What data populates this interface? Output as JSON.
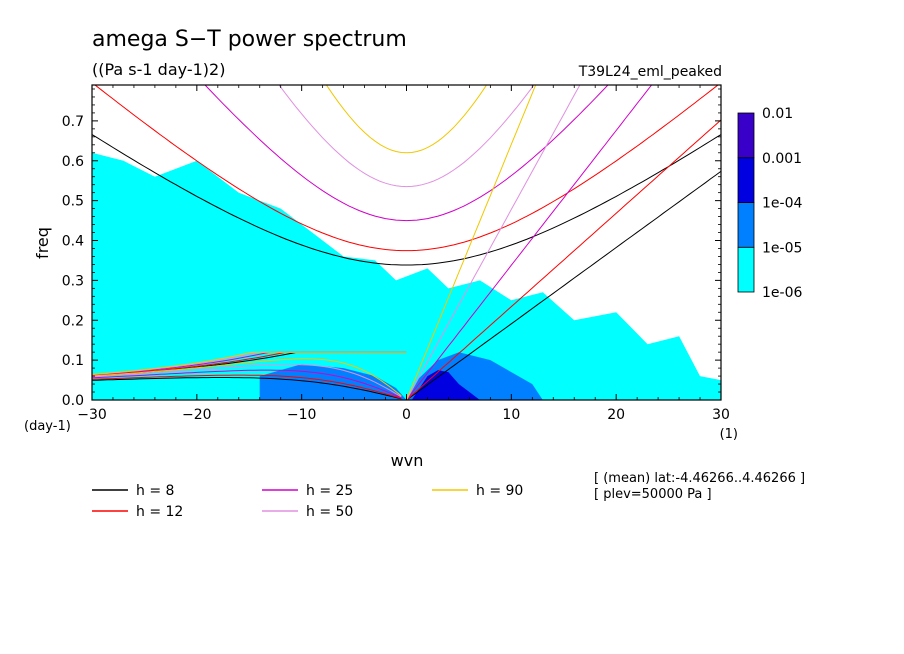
{
  "chart_data": {
    "type": "heatmap",
    "title": "amega S−T power spectrum",
    "subtitle": "((Pa s-1 day-1)2)",
    "run_label": "T39L24_eml_peaked",
    "xlabel": "wvn",
    "ylabel": "freq",
    "y_unit_label": "(day-1)",
    "x_unit_label": "(1)",
    "xlim": [
      -30,
      30
    ],
    "ylim": [
      0,
      0.79
    ],
    "xticks": [
      "−30",
      "−20",
      "−10",
      "0",
      "10",
      "20",
      "30"
    ],
    "yticks": [
      "0.0",
      "0.1",
      "0.2",
      "0.3",
      "0.4",
      "0.5",
      "0.6",
      "0.7"
    ],
    "colorbar": {
      "levels": [
        "1e-06",
        "1e-05",
        "1e-04",
        "0.001",
        "0.01"
      ],
      "colors": [
        "#00ffff",
        "#0080ff",
        "#0000e0",
        "#3800c8"
      ]
    },
    "power_regions": [
      {
        "level": "1e-06",
        "color": "#00ffff",
        "polygon": [
          [
            -30,
            0.0
          ],
          [
            -30,
            0.62
          ],
          [
            -27,
            0.6
          ],
          [
            -24,
            0.56
          ],
          [
            -20,
            0.6
          ],
          [
            -16,
            0.52
          ],
          [
            -12,
            0.48
          ],
          [
            -9,
            0.42
          ],
          [
            -6,
            0.36
          ],
          [
            -3,
            0.35
          ],
          [
            -1,
            0.3
          ],
          [
            2,
            0.33
          ],
          [
            4,
            0.28
          ],
          [
            7,
            0.3
          ],
          [
            10,
            0.25
          ],
          [
            13,
            0.27
          ],
          [
            16,
            0.2
          ],
          [
            20,
            0.22
          ],
          [
            23,
            0.14
          ],
          [
            26,
            0.16
          ],
          [
            28,
            0.06
          ],
          [
            30,
            0.05
          ],
          [
            30,
            0.0
          ]
        ]
      },
      {
        "level": "1e-05",
        "color": "#0080ff",
        "polygon": [
          [
            -14,
            0.0
          ],
          [
            -14,
            0.06
          ],
          [
            -10,
            0.09
          ],
          [
            -6,
            0.08
          ],
          [
            -3,
            0.06
          ],
          [
            -1,
            0.03
          ],
          [
            0,
            0.0
          ],
          [
            1,
            0.05
          ],
          [
            3,
            0.1
          ],
          [
            5,
            0.12
          ],
          [
            8,
            0.1
          ],
          [
            10,
            0.07
          ],
          [
            12,
            0.04
          ],
          [
            13,
            0.0
          ]
        ]
      },
      {
        "level": "1e-04",
        "color": "#0000e0",
        "polygon": [
          [
            0.5,
            0.0
          ],
          [
            1,
            0.02
          ],
          [
            2,
            0.06
          ],
          [
            3,
            0.075
          ],
          [
            4,
            0.07
          ],
          [
            5,
            0.04
          ],
          [
            6,
            0.02
          ],
          [
            7,
            0.0
          ]
        ]
      }
    ],
    "series": [
      {
        "name": "h =  8",
        "color": "#000000",
        "values": []
      },
      {
        "name": "h = 12",
        "color": "#ff0000",
        "values": []
      },
      {
        "name": "h = 25",
        "color": "#d000c8",
        "values": []
      },
      {
        "name": "h = 50",
        "color": "#e090e0",
        "values": []
      },
      {
        "name": "h = 90",
        "color": "#f0c800",
        "values": []
      }
    ],
    "annotations": [
      "[ (mean) lat:-4.46266..4.46266 ]",
      "[ plev=50000 Pa ]"
    ]
  }
}
